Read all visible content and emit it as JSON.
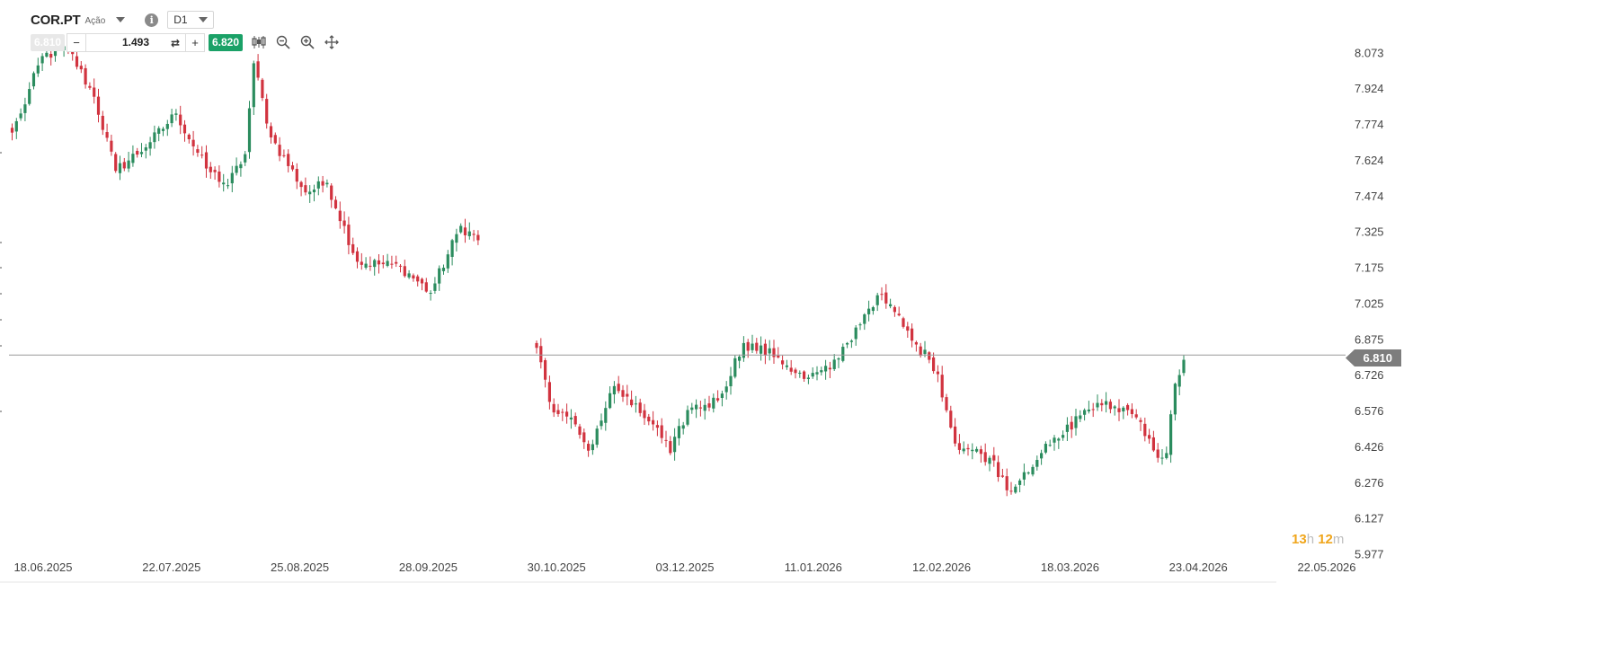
{
  "header": {
    "symbol": "COR.PT",
    "instrument_type": "Ação",
    "timeframe": "D1",
    "info_icon": "info-icon"
  },
  "trade": {
    "sell_price": "6.810",
    "quantity": "1.493",
    "buy_price": "6.820",
    "minus_label": "−",
    "plus_label": "+"
  },
  "tools": [
    "candlestick-type-icon",
    "zoom-out-icon",
    "zoom-in-icon",
    "move-icon"
  ],
  "countdown": {
    "hours": "13",
    "hours_unit": "h",
    "minutes": "12",
    "minutes_unit": "m"
  },
  "colors": {
    "up": "#2b8c5e",
    "down": "#d1333f",
    "price_line": "#9a9a9a",
    "price_tag": "#7d7d7d",
    "buy": "#1aa167"
  },
  "chart_data": {
    "type": "candlestick",
    "current_price": 6.81,
    "current_price_label": "6.810",
    "y_ticks": [
      "8.073",
      "7.924",
      "7.774",
      "7.624",
      "7.474",
      "7.325",
      "7.175",
      "7.025",
      "6.875",
      "6.726",
      "6.576",
      "6.426",
      "6.276",
      "6.127",
      "5.977"
    ],
    "ylim": [
      5.977,
      8.073
    ],
    "x_labels": [
      "18.06.2025",
      "22.07.2025",
      "25.08.2025",
      "28.09.2025",
      "30.10.2025",
      "03.12.2025",
      "11.01.2026",
      "12.02.2026",
      "18.03.2026",
      "23.04.2026",
      "22.05.2026"
    ],
    "grid": false,
    "segments": [
      {
        "start_date": "18.06.2025",
        "start_close": 7.74,
        "waypoints": [
          [
            2,
            7.82
          ],
          [
            7,
            8.06
          ],
          [
            13,
            8.09
          ],
          [
            19,
            7.89
          ],
          [
            24,
            7.58
          ],
          [
            32,
            7.7
          ],
          [
            38,
            7.82
          ],
          [
            45,
            7.59
          ],
          [
            50,
            7.52
          ],
          [
            54,
            7.65
          ],
          [
            56,
            8.03
          ],
          [
            60,
            7.72
          ],
          [
            68,
            7.49
          ],
          [
            73,
            7.53
          ],
          [
            80,
            7.2
          ],
          [
            90,
            7.18
          ],
          [
            97,
            7.07
          ],
          [
            104,
            7.35
          ],
          [
            108,
            7.29
          ]
        ]
      },
      {
        "start_date": "30.10.2025",
        "start_close": 6.84,
        "waypoints": [
          [
            4,
            6.57
          ],
          [
            9,
            6.52
          ],
          [
            12,
            6.41
          ],
          [
            18,
            6.68
          ],
          [
            22,
            6.6
          ],
          [
            27,
            6.52
          ],
          [
            31,
            6.4
          ],
          [
            35,
            6.58
          ],
          [
            42,
            6.62
          ],
          [
            48,
            6.86
          ],
          [
            56,
            6.8
          ],
          [
            62,
            6.71
          ],
          [
            68,
            6.75
          ],
          [
            72,
            6.86
          ],
          [
            76,
            6.98
          ],
          [
            79,
            7.06
          ],
          [
            83,
            6.99
          ],
          [
            87,
            6.87
          ],
          [
            91,
            6.79
          ],
          [
            93,
            6.73
          ],
          [
            97,
            6.44
          ],
          [
            105,
            6.38
          ],
          [
            110,
            6.24
          ],
          [
            113,
            6.32
          ],
          [
            117,
            6.4
          ],
          [
            121,
            6.46
          ],
          [
            127,
            6.58
          ],
          [
            131,
            6.6
          ],
          [
            137,
            6.58
          ],
          [
            140,
            6.53
          ],
          [
            142,
            6.46
          ],
          [
            144,
            6.38
          ],
          [
            146,
            6.4
          ],
          [
            148,
            6.69
          ],
          [
            150,
            6.79
          ]
        ]
      }
    ]
  }
}
